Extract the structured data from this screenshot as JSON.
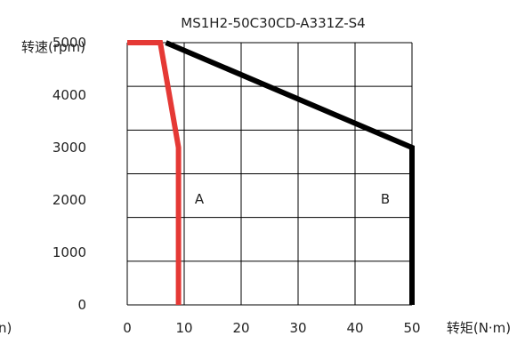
{
  "chart_data": {
    "type": "line",
    "title": "MS1H2-50C30CD-A331Z-S4",
    "xlabel": "转矩(N·m)",
    "ylabel": "转速(rpm)",
    "clipped_left_text": "n)",
    "xlim": [
      0,
      50
    ],
    "ylim": [
      0,
      5000
    ],
    "x_ticks": [
      "0",
      "10",
      "20",
      "30",
      "40",
      "50"
    ],
    "y_ticks": [
      "0",
      "1000",
      "2000",
      "3000",
      "4000",
      "5000"
    ],
    "x_tick_values": [
      0,
      10,
      20,
      30,
      40,
      50
    ],
    "y_tick_values": [
      0,
      1000,
      2000,
      3000,
      4000,
      5000
    ],
    "grid": true,
    "series": [
      {
        "name": "A",
        "color": "#e53935",
        "points": [
          [
            0,
            5000
          ],
          [
            5.8,
            5000
          ],
          [
            9,
            3000
          ],
          [
            9,
            0
          ]
        ]
      },
      {
        "name": "B",
        "color": "#000000",
        "points": [
          [
            6.8,
            5000
          ],
          [
            50,
            3000
          ],
          [
            50,
            0
          ]
        ]
      }
    ]
  }
}
